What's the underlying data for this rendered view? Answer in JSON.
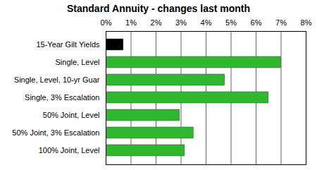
{
  "chart_data": {
    "type": "bar",
    "orientation": "horizontal",
    "title": "Standard Annuity - changes last month",
    "categories": [
      "15-Year Gilt Yields",
      "Single, Level",
      "Single, Level, 10-yr Guar",
      "Single, 3% Escalation",
      "50% Joint, Level",
      "50% Joint, 3% Escalation",
      "100% Joint, Level"
    ],
    "values": [
      0.7,
      7.0,
      4.75,
      6.5,
      2.95,
      3.5,
      3.15
    ],
    "colors": [
      "#000000",
      "#2eb82e",
      "#2eb82e",
      "#2eb82e",
      "#2eb82e",
      "#2eb82e",
      "#2eb82e"
    ],
    "xlim": [
      0,
      8
    ],
    "xticks": [
      {
        "value": 0,
        "label": "0%"
      },
      {
        "value": 1,
        "label": "1%"
      },
      {
        "value": 2,
        "label": "2%"
      },
      {
        "value": 3,
        "label": "3%"
      },
      {
        "value": 4,
        "label": "4%"
      },
      {
        "value": 5,
        "label": "5%"
      },
      {
        "value": 6,
        "label": "6%"
      },
      {
        "value": 7,
        "label": "7%"
      },
      {
        "value": 8,
        "label": "8%"
      }
    ],
    "grid": true
  }
}
